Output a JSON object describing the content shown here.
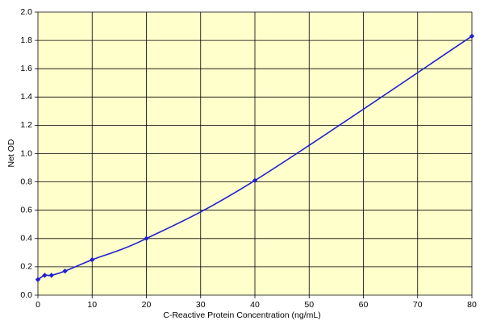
{
  "chart_data": {
    "type": "line",
    "x_label": "C-Reactive Protein Concentration (ng/mL)",
    "y_label": "Net OD",
    "x": [
      0,
      1.25,
      2.5,
      5,
      10,
      20,
      40,
      80
    ],
    "series": [
      {
        "color": "#2020d0",
        "values": [
          0.11,
          0.14,
          0.14,
          0.17,
          0.25,
          0.4,
          0.81,
          1.83
        ]
      }
    ],
    "xlim": [
      0,
      80
    ],
    "xticks": [
      0,
      10,
      20,
      30,
      40,
      50,
      60,
      70,
      80
    ],
    "ylim": [
      0,
      2
    ],
    "yticks": [
      {
        "value": 0,
        "label": "0.0"
      },
      0.2,
      0.4,
      0.6,
      0.8,
      {
        "value": 1,
        "label": "1.0"
      },
      1.2,
      1.4,
      1.6,
      1.8,
      {
        "value": 2,
        "label": "2.0"
      }
    ],
    "grid": true,
    "background": "#ffffcc"
  }
}
